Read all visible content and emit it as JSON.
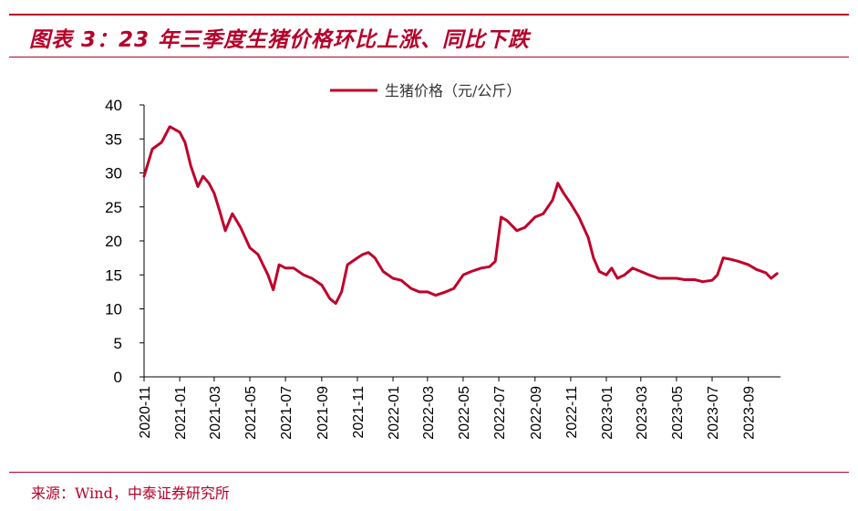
{
  "header": {
    "title": "图表 3：23 年三季度生猪价格环比上涨、同比下跌"
  },
  "footer": {
    "source": "来源：Wind，中泰证券研究所"
  },
  "colors": {
    "accent": "#b5002a",
    "series": "#c0002a"
  },
  "chart_data": {
    "type": "line",
    "ylim": [
      0,
      40
    ],
    "yticks": [
      "0",
      "5",
      "10",
      "15",
      "20",
      "25",
      "30",
      "35",
      "40"
    ],
    "xrange": [
      "2020-11",
      "2023-10"
    ],
    "xticks": [
      "2020-11",
      "2021-01",
      "2021-03",
      "2021-05",
      "2021-07",
      "2021-09",
      "2021-11",
      "2022-01",
      "2022-03",
      "2022-05",
      "2022-07",
      "2022-09",
      "2022-11",
      "2023-01",
      "2023-03",
      "2023-05",
      "2023-07",
      "2023-09"
    ],
    "legend_position": "top-center",
    "grid": false,
    "series": [
      {
        "name": "生猪价格（元/公斤）",
        "x": [
          "2020-11-01",
          "2020-11-15",
          "2020-12-01",
          "2020-12-15",
          "2021-01-01",
          "2021-01-10",
          "2021-01-20",
          "2021-02-01",
          "2021-02-10",
          "2021-02-20",
          "2021-03-01",
          "2021-03-10",
          "2021-03-20",
          "2021-04-01",
          "2021-04-15",
          "2021-05-01",
          "2021-05-15",
          "2021-06-01",
          "2021-06-10",
          "2021-06-20",
          "2021-07-01",
          "2021-07-15",
          "2021-08-01",
          "2021-08-15",
          "2021-09-01",
          "2021-09-15",
          "2021-09-25",
          "2021-10-05",
          "2021-10-15",
          "2021-11-01",
          "2021-11-10",
          "2021-11-20",
          "2021-12-01",
          "2021-12-15",
          "2022-01-01",
          "2022-01-15",
          "2022-02-01",
          "2022-02-15",
          "2022-03-01",
          "2022-03-15",
          "2022-04-01",
          "2022-04-15",
          "2022-05-01",
          "2022-05-15",
          "2022-06-01",
          "2022-06-15",
          "2022-06-25",
          "2022-07-05",
          "2022-07-15",
          "2022-08-01",
          "2022-08-15",
          "2022-09-01",
          "2022-09-15",
          "2022-10-01",
          "2022-10-10",
          "2022-10-20",
          "2022-11-01",
          "2022-11-15",
          "2022-12-01",
          "2022-12-10",
          "2022-12-20",
          "2023-01-01",
          "2023-01-10",
          "2023-01-20",
          "2023-02-01",
          "2023-02-15",
          "2023-03-01",
          "2023-03-15",
          "2023-04-01",
          "2023-04-15",
          "2023-05-01",
          "2023-05-15",
          "2023-06-01",
          "2023-06-15",
          "2023-07-01",
          "2023-07-10",
          "2023-07-20",
          "2023-08-01",
          "2023-08-15",
          "2023-09-01",
          "2023-09-15",
          "2023-10-01",
          "2023-10-10",
          "2023-10-20"
        ],
        "values": [
          29.5,
          33.5,
          34.5,
          36.8,
          36.0,
          34.5,
          31.0,
          28.0,
          29.5,
          28.5,
          27.0,
          24.5,
          21.5,
          24.0,
          22.0,
          19.0,
          18.0,
          15.0,
          12.8,
          16.5,
          16.0,
          16.0,
          15.0,
          14.5,
          13.5,
          11.5,
          10.8,
          12.5,
          16.5,
          17.5,
          18.0,
          18.3,
          17.5,
          15.5,
          14.5,
          14.2,
          13.0,
          12.5,
          12.5,
          12.0,
          12.5,
          13.0,
          15.0,
          15.5,
          16.0,
          16.2,
          17.0,
          23.5,
          23.0,
          21.5,
          22.0,
          23.5,
          24.0,
          26.0,
          28.5,
          27.0,
          25.5,
          23.5,
          20.5,
          17.5,
          15.5,
          15.0,
          16.0,
          14.5,
          15.0,
          16.0,
          15.5,
          15.0,
          14.5,
          14.5,
          14.5,
          14.3,
          14.3,
          14.0,
          14.2,
          15.0,
          17.5,
          17.3,
          17.0,
          16.5,
          15.8,
          15.3,
          14.5,
          15.2
        ]
      }
    ]
  }
}
